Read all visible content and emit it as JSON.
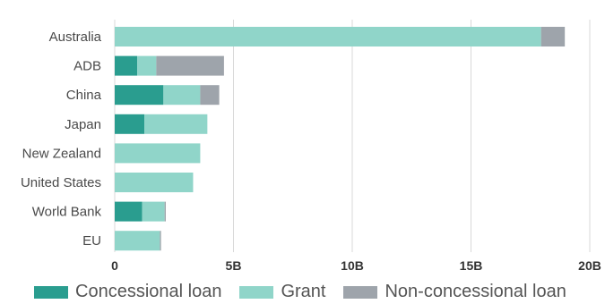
{
  "chart_data": {
    "type": "bar",
    "orientation": "horizontal",
    "stacked": true,
    "categories": [
      "Australia",
      "ADB",
      "China",
      "Japan",
      "New Zealand",
      "United States",
      "World Bank",
      "EU"
    ],
    "series": [
      {
        "name": "Concessional loan",
        "color": "#2a9d8f",
        "values": [
          0,
          0.95,
          2.05,
          1.25,
          0,
          0,
          1.15,
          0
        ]
      },
      {
        "name": "Grant",
        "color": "#90d5c9",
        "values": [
          17.95,
          0.8,
          1.55,
          2.65,
          3.6,
          3.3,
          0.95,
          1.9
        ]
      },
      {
        "name": "Non-concessional loan",
        "color": "#9ea4ab",
        "values": [
          1.0,
          2.85,
          0.8,
          0,
          0,
          0,
          0.05,
          0.05
        ]
      }
    ],
    "x_ticks": [
      "0",
      "5B",
      "10B",
      "15B",
      "20B"
    ],
    "x_tick_values": [
      0,
      5,
      10,
      15,
      20
    ],
    "xlim": [
      0,
      20
    ],
    "grid": true,
    "legend_position": "bottom"
  }
}
